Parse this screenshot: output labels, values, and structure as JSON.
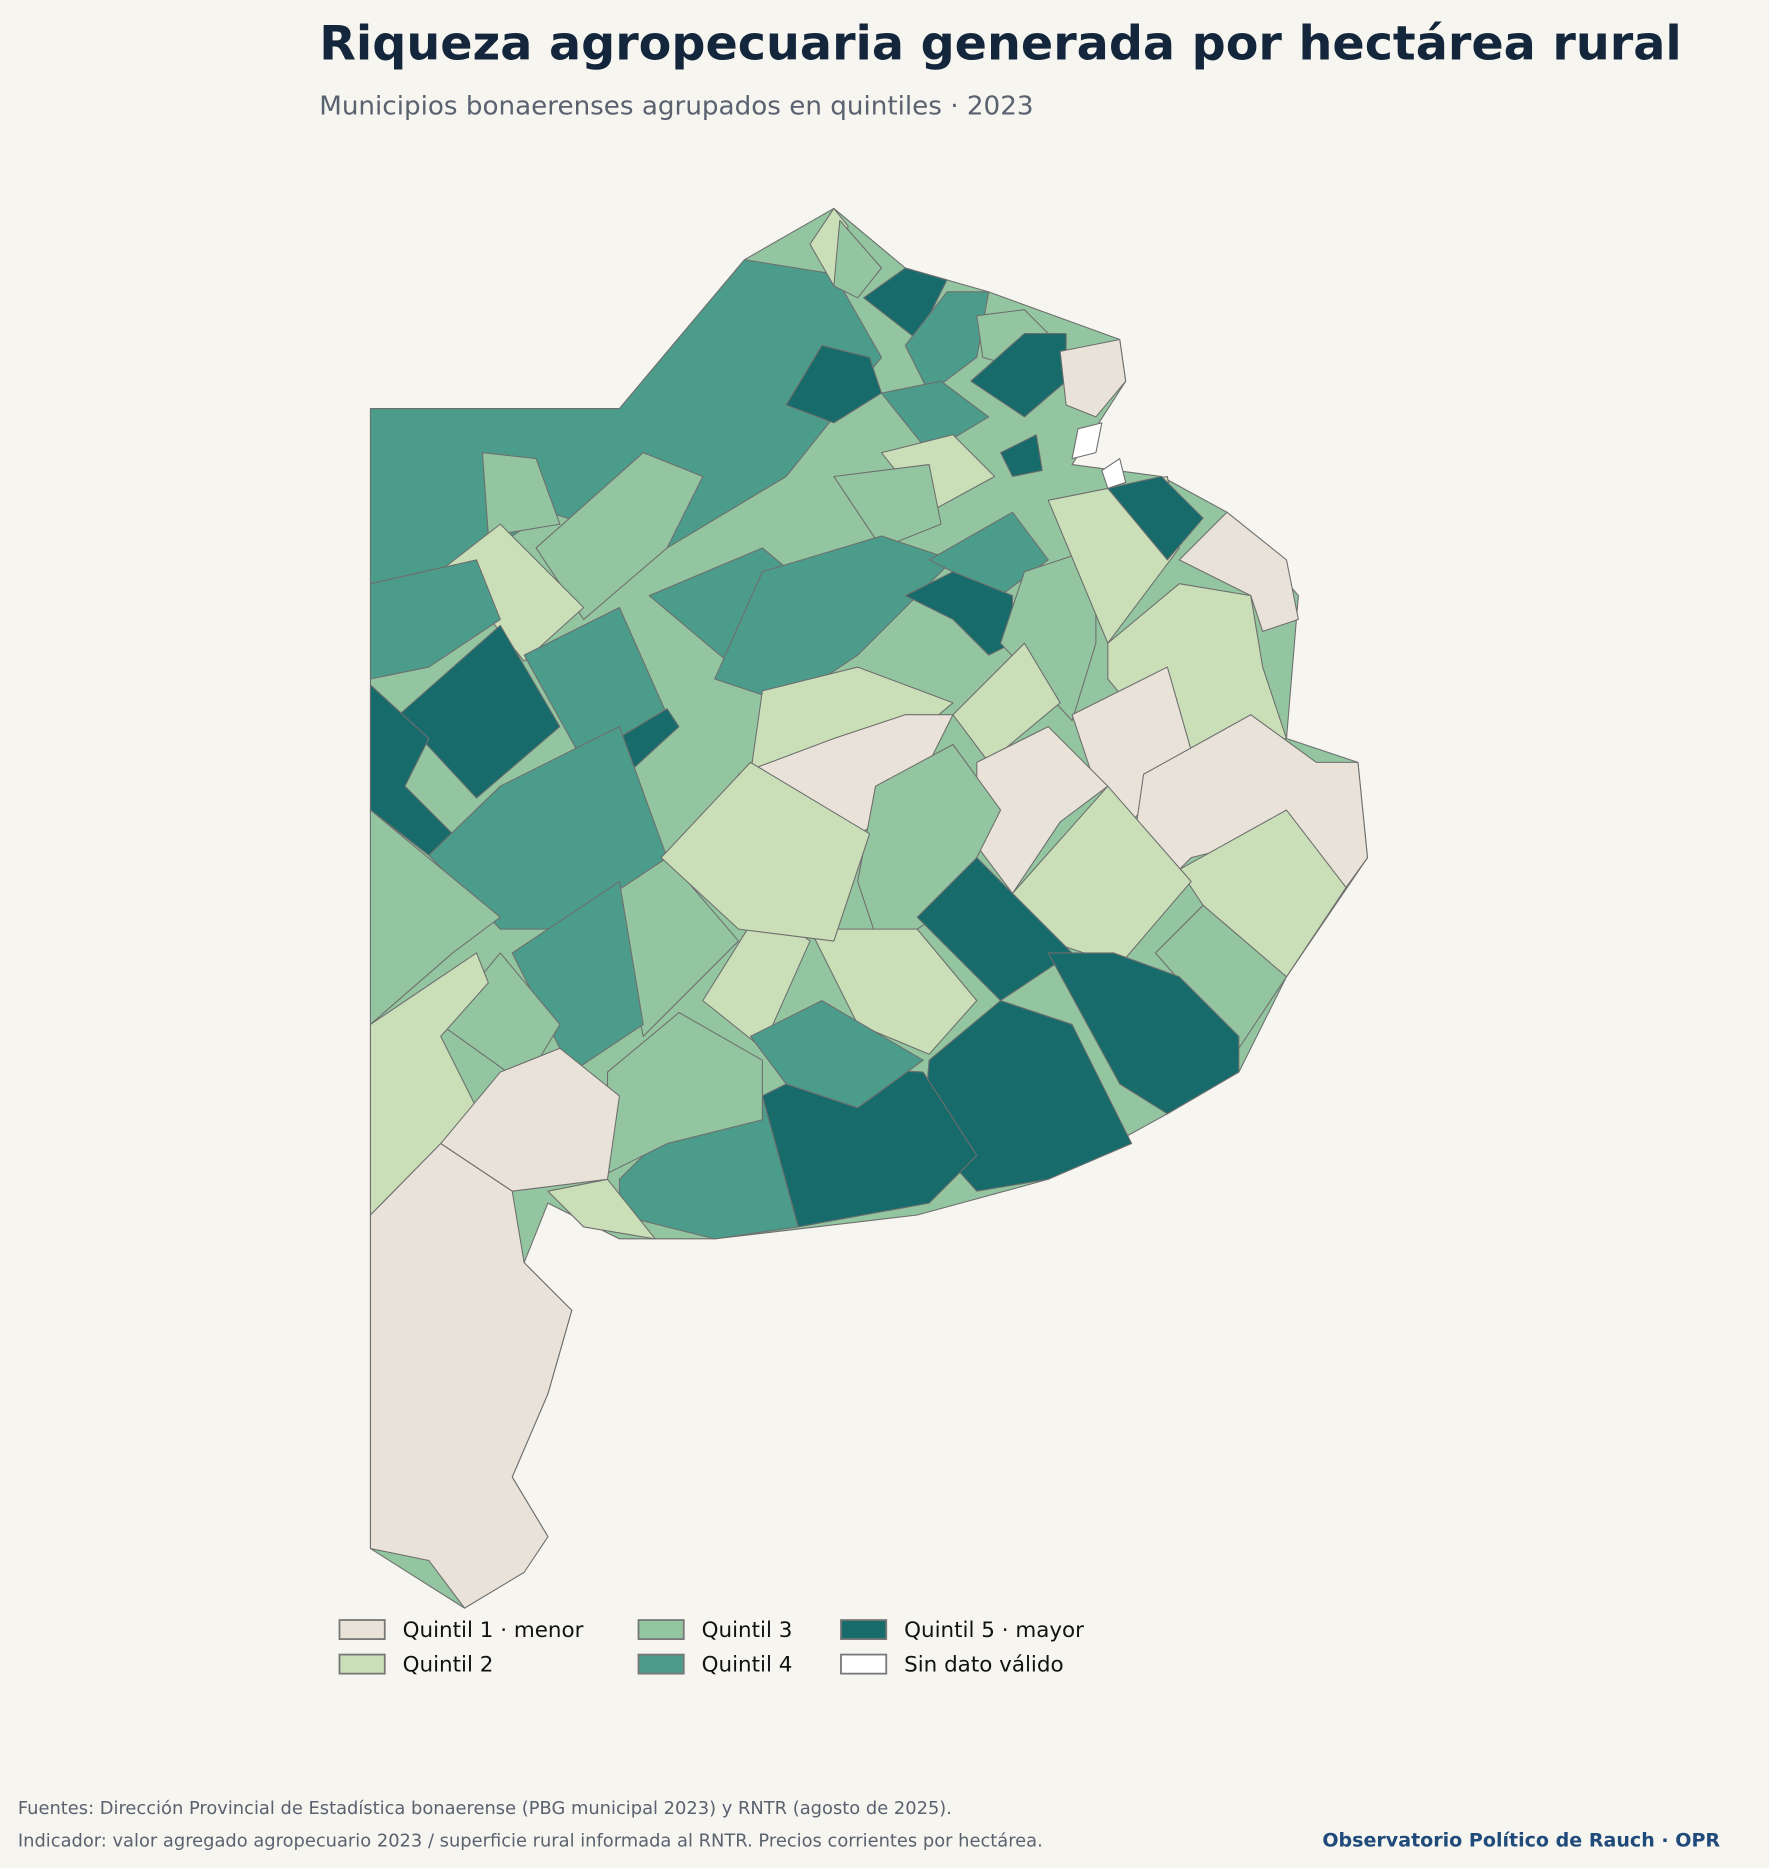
{
  "header": {
    "title": "Riqueza agropecuaria generada por hectárea rural",
    "subtitle": "Municipios bonaerenses agrupados en quintiles · 2023"
  },
  "legend": {
    "items": [
      {
        "label": "Quintil 1 · menor",
        "color": "#e8e2d8"
      },
      {
        "label": "Quintil 2",
        "color": "#cadfb8"
      },
      {
        "label": "Quintil 3",
        "color": "#93c6a0"
      },
      {
        "label": "Quintil 4",
        "color": "#4c9c8b"
      },
      {
        "label": "Quintil 5 · mayor",
        "color": "#186b6b"
      },
      {
        "label": "Sin dato válido",
        "color": "#ffffff"
      }
    ]
  },
  "footer": {
    "sources": "Fuentes: Dirección Provincial de Estadística bonaerense (PBG municipal 2023) y RNTR (agosto de 2025).",
    "note": "Indicador: valor agregado agropecuario 2023 / superficie rural informada al RNTR. Precios corrientes por hectárea.",
    "brand": "Observatorio Político de Rauch · OPR"
  }
}
